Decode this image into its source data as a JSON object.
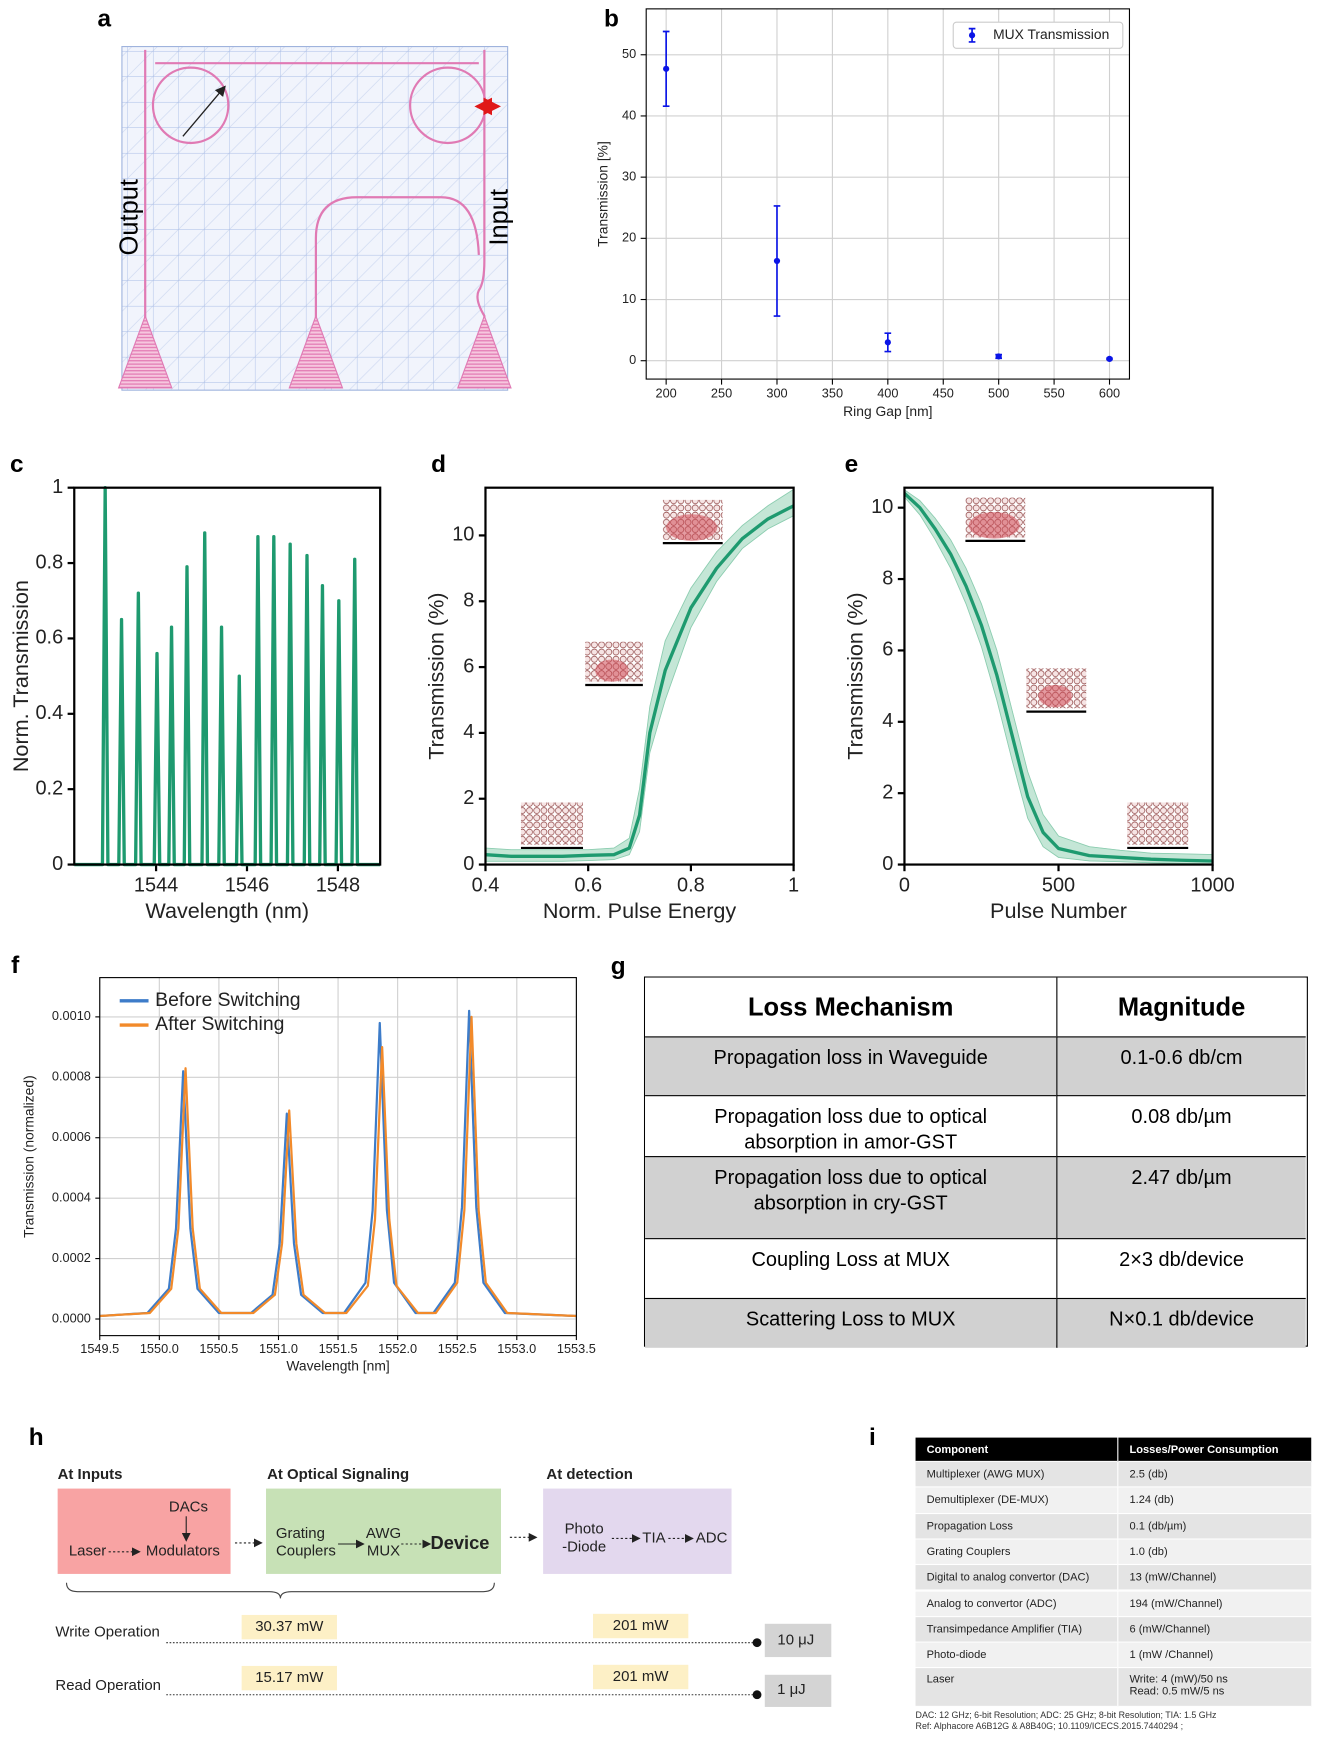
{
  "panel_labels": [
    "a",
    "b",
    "c",
    "d",
    "e",
    "f",
    "g",
    "h",
    "i"
  ],
  "panel_a": {
    "output_label": "Output",
    "input_label": "Input"
  },
  "chart_data": [
    {
      "type": "errorbar",
      "x_label": "Ring Gap [nm]",
      "y_label": "Transmission [%]",
      "grid": true,
      "legend": "upper right",
      "legend_frame": true,
      "xlim": [
        182,
        618
      ],
      "ylim": [
        -3,
        57.5
      ],
      "xticks": [
        200,
        250,
        300,
        350,
        400,
        450,
        500,
        550,
        600
      ],
      "yticks": [
        0,
        10,
        20,
        30,
        40,
        50
      ],
      "series": [
        {
          "name": "MUX Transmission",
          "color": "#0a14e6",
          "x": [
            200,
            300,
            400,
            500,
            600
          ],
          "values": [
            47.7,
            16.3,
            3.0,
            0.7,
            0.3
          ],
          "errors": [
            6.1,
            9.0,
            1.5,
            0.3,
            0.1
          ]
        }
      ]
    },
    {
      "type": "line",
      "x_label": "Wavelength (nm)",
      "y_label": "Norm. Transmission",
      "grid": false,
      "color": "#1e9a6f",
      "xlim": [
        1542.2,
        1548.93
      ],
      "ylim": [
        0,
        1
      ],
      "xticks": [
        1544,
        1546,
        1548
      ],
      "yticks": [
        0,
        0.2,
        0.4,
        0.6,
        0.8,
        1
      ],
      "x": [
        1542.2,
        1542.82,
        1542.88,
        1542.94,
        1543.18,
        1543.24,
        1543.3,
        1543.55,
        1543.61,
        1543.67,
        1543.96,
        1544.02,
        1544.08,
        1544.28,
        1544.34,
        1544.4,
        1544.62,
        1544.68,
        1544.74,
        1545.01,
        1545.07,
        1545.13,
        1545.38,
        1545.44,
        1545.5,
        1545.77,
        1545.83,
        1545.89,
        1546.18,
        1546.24,
        1546.3,
        1546.53,
        1546.59,
        1546.65,
        1546.89,
        1546.95,
        1547.01,
        1547.26,
        1547.32,
        1547.38,
        1547.6,
        1547.66,
        1547.72,
        1547.96,
        1548.02,
        1548.08,
        1548.31,
        1548.37,
        1548.43,
        1548.93
      ],
      "values": [
        0,
        0,
        1,
        0,
        0,
        0.65,
        0,
        0,
        0.72,
        0,
        0,
        0.56,
        0,
        0,
        0.63,
        0,
        0,
        0.79,
        0,
        0,
        0.88,
        0,
        0,
        0.63,
        0,
        0,
        0.5,
        0,
        0,
        0.87,
        0,
        0,
        0.87,
        0,
        0,
        0.85,
        0,
        0,
        0.82,
        0,
        0,
        0.74,
        0,
        0,
        0.7,
        0,
        0,
        0.81,
        0,
        0
      ]
    },
    {
      "type": "line",
      "x_label": "Norm. Pulse Energy",
      "y_label": "Transmission (%)",
      "grid": false,
      "color": "#1e9a6f",
      "band_color": "#c4e6d6",
      "xlim": [
        0.4,
        1
      ],
      "ylim": [
        0,
        11.45
      ],
      "xticks": [
        0.4,
        0.6,
        0.8,
        1
      ],
      "yticks": [
        0,
        2,
        4,
        6,
        8,
        10
      ],
      "x": [
        0.4,
        0.45,
        0.5,
        0.55,
        0.6,
        0.65,
        0.68,
        0.7,
        0.72,
        0.75,
        0.8,
        0.85,
        0.9,
        0.95,
        1
      ],
      "values": [
        0.3,
        0.25,
        0.25,
        0.25,
        0.28,
        0.3,
        0.5,
        1.5,
        4,
        5.9,
        7.8,
        9.0,
        9.9,
        10.5,
        10.9
      ],
      "band_lower": [
        0.1,
        0.1,
        0.1,
        0.1,
        0.12,
        0.15,
        0.3,
        1.0,
        3.4,
        5.0,
        7.2,
        8.6,
        9.6,
        10.2,
        10.6
      ],
      "band_upper": [
        0.5,
        0.45,
        0.45,
        0.45,
        0.45,
        0.5,
        0.8,
        2.3,
        4.8,
        6.8,
        8.4,
        9.5,
        10.3,
        10.9,
        11.4
      ]
    },
    {
      "type": "line",
      "x_label": "Pulse Number",
      "y_label": "Transmission (%)",
      "grid": false,
      "color": "#1e9a6f",
      "band_color": "#c4e6d6",
      "xlim": [
        0,
        1000
      ],
      "ylim": [
        0,
        10.56
      ],
      "xticks": [
        0,
        500,
        1000
      ],
      "yticks": [
        0,
        2,
        4,
        6,
        8,
        10
      ],
      "x": [
        0,
        50,
        100,
        150,
        200,
        250,
        300,
        350,
        400,
        450,
        500,
        600,
        700,
        800,
        900,
        1000
      ],
      "values": [
        10.4,
        10.0,
        9.4,
        8.7,
        7.8,
        6.7,
        5.3,
        3.6,
        1.9,
        0.9,
        0.45,
        0.25,
        0.2,
        0.15,
        0.12,
        0.1
      ],
      "band_lower": [
        10.3,
        9.8,
        9.1,
        8.3,
        7.3,
        6.1,
        4.6,
        2.9,
        1.3,
        0.5,
        0.2,
        0.1,
        0.08,
        0.05,
        0.03,
        0.02
      ],
      "band_upper": [
        10.5,
        10.2,
        9.7,
        9.1,
        8.3,
        7.3,
        6.0,
        4.3,
        2.6,
        1.4,
        0.8,
        0.5,
        0.4,
        0.32,
        0.3,
        0.28
      ]
    },
    {
      "type": "line",
      "x_label": "Wavelength [nm]",
      "y_label": "Transmission (normalized)",
      "grid": true,
      "legend": "upper left",
      "legend_frame": false,
      "xlim": [
        1549.5,
        1553.5
      ],
      "ylim": [
        -5.5e-05,
        0.00113
      ],
      "xticks": [
        1549.5,
        {
          "value": 1550,
          "label": "1550.0"
        },
        1550.5,
        {
          "value": 1551,
          "label": "1551.0"
        },
        1551.5,
        {
          "value": 1552,
          "label": "1552.0"
        },
        1552.5,
        {
          "value": 1553,
          "label": "1553.0"
        },
        1553.5
      ],
      "yticks": [
        {
          "value": 0,
          "label": "0.0000"
        },
        {
          "value": 0.0002,
          "label": "0.0002"
        },
        {
          "value": 0.0004,
          "label": "0.0004"
        },
        {
          "value": 0.0006,
          "label": "0.0006"
        },
        {
          "value": 0.0008,
          "label": "0.0008"
        },
        {
          "value": 0.001,
          "label": "0.0010"
        }
      ],
      "series": [
        {
          "name": "Before Switching",
          "color": "#3d7cc9",
          "x": [
            1549.5,
            1549.9,
            1550.08,
            1550.14,
            1550.2,
            1550.26,
            1550.32,
            1550.5,
            1550.77,
            1550.95,
            1551.01,
            1551.07,
            1551.13,
            1551.19,
            1551.37,
            1551.55,
            1551.73,
            1551.79,
            1551.85,
            1551.91,
            1551.97,
            1552.15,
            1552.3,
            1552.48,
            1552.54,
            1552.6,
            1552.66,
            1552.72,
            1552.9,
            1553.5
          ],
          "values": [
            1e-05,
            2e-05,
            0.0001,
            0.0003,
            0.00082,
            0.0003,
            0.0001,
            2e-05,
            2e-05,
            8e-05,
            0.00025,
            0.00068,
            0.00025,
            8e-05,
            2e-05,
            2e-05,
            0.00012,
            0.00036,
            0.00098,
            0.00036,
            0.00012,
            2e-05,
            2e-05,
            0.00012,
            0.00037,
            0.00102,
            0.00037,
            0.00012,
            2e-05,
            1e-05
          ]
        },
        {
          "name": "After Switching",
          "color": "#f28a2a",
          "x": [
            1549.5,
            1549.92,
            1550.1,
            1550.16,
            1550.22,
            1550.28,
            1550.34,
            1550.52,
            1550.79,
            1550.97,
            1551.03,
            1551.09,
            1551.15,
            1551.21,
            1551.39,
            1551.57,
            1551.75,
            1551.81,
            1551.87,
            1551.93,
            1551.99,
            1552.17,
            1552.32,
            1552.5,
            1552.56,
            1552.62,
            1552.68,
            1552.74,
            1552.92,
            1553.5
          ],
          "values": [
            1e-05,
            2e-05,
            0.0001,
            0.0003,
            0.00083,
            0.0003,
            0.0001,
            2e-05,
            2e-05,
            8e-05,
            0.00025,
            0.00069,
            0.00025,
            8e-05,
            2e-05,
            2e-05,
            0.00011,
            0.00033,
            0.0009,
            0.00033,
            0.00011,
            2e-05,
            2e-05,
            0.00012,
            0.00036,
            0.001,
            0.00036,
            0.00012,
            2e-05,
            1e-05
          ]
        }
      ]
    }
  ],
  "table_g": {
    "header": [
      "Loss Mechanism",
      "Magnitude"
    ],
    "rows": [
      [
        "Propagation loss in Waveguide",
        "0.1-0.6 db/cm"
      ],
      [
        "Propagation loss due to optical absorption in amor-GST",
        "0.08 db/µm"
      ],
      [
        "Propagation loss due to optical absorption in cry-GST",
        "2.47 db/µm"
      ],
      [
        "Coupling Loss at MUX",
        "2×3 db/device"
      ],
      [
        "Scattering Loss to MUX",
        "N×0.1 db/device"
      ]
    ]
  },
  "diagram_h": {
    "titles": [
      "At Inputs",
      "At Optical Signaling",
      "At detection"
    ],
    "blocks": {
      "dacs": "DACs",
      "laser": "Laser",
      "modulators": "Modulators",
      "grating_couplers": [
        "Grating",
        "Couplers"
      ],
      "awg_mux": [
        "AWG",
        "MUX"
      ],
      "device": "Device",
      "photodiode": [
        "Photo",
        "-Diode"
      ],
      "tia": "TIA",
      "adc": "ADC"
    },
    "operations": [
      {
        "name": "Write Operation",
        "input_power": "30.37 mW",
        "detection_power": "201 mW",
        "energy": "10 μJ"
      },
      {
        "name": "Read Operation",
        "input_power": "15.17 mW",
        "detection_power": "201 mW",
        "energy": "1 μJ"
      }
    ]
  },
  "table_i": {
    "header": [
      "Component",
      "Losses/Power Consumption"
    ],
    "rows": [
      [
        "Multiplexer (AWG MUX)",
        "2.5 (db)"
      ],
      [
        "Demultiplexer (DE-MUX)",
        "1.24 (db)"
      ],
      [
        "Propagation Loss",
        "0.1 (db/µm)"
      ],
      [
        "Grating Couplers",
        "1.0 (db)"
      ],
      [
        "Digital to analog convertor (DAC)",
        "13 (mW/Channel)"
      ],
      [
        "Analog to convertor (ADC)",
        "194 (mW/Channel)"
      ],
      [
        "Transimpedance Amplifier (TIA)",
        "6 (mW/Channel)"
      ],
      [
        "Photo-diode",
        "1 (mW /Channel)"
      ],
      [
        "Laser",
        [
          "Write: 4 (mW)/50 ns",
          "Read: 0.5 mW/5 ns"
        ]
      ]
    ],
    "notes": [
      "DAC: 12 GHz; 6-bit Resolution; ADC: 25 GHz; 8-bit Resolution; TIA: 1.5 GHz",
      "Ref: Alphacore A6B12G & A8B40G; 10.1109/ICECS.2015.7440294 ;"
    ]
  }
}
